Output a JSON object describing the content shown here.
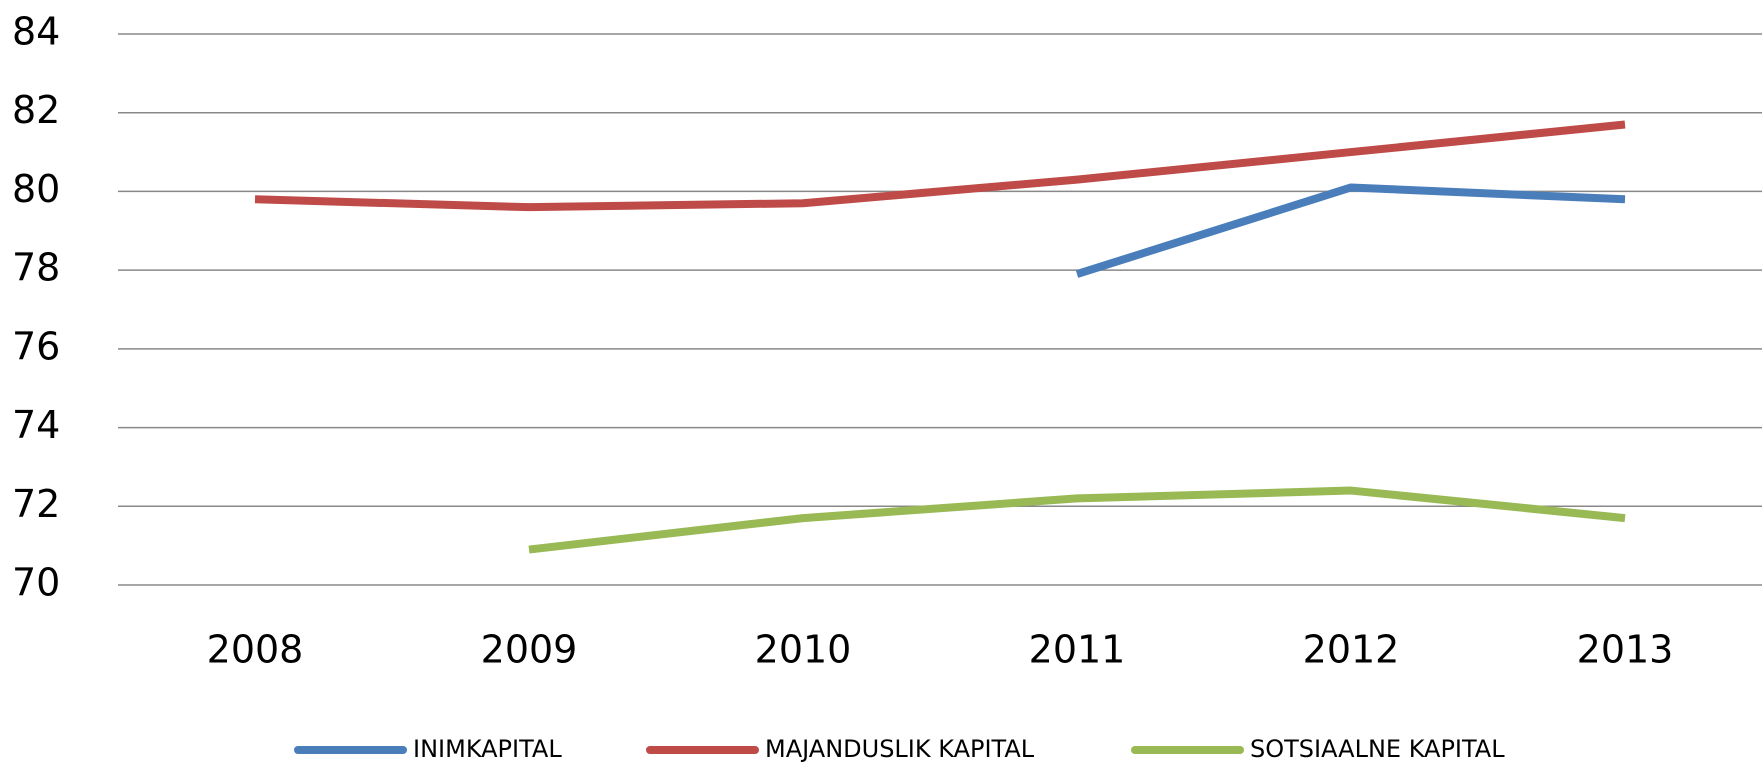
{
  "chart_data": {
    "type": "line",
    "categories": [
      "2008",
      "2009",
      "2010",
      "2011",
      "2012",
      "2013"
    ],
    "series": [
      {
        "name": "INIMKAPITAL",
        "color": "#4a7ebb",
        "values": [
          null,
          null,
          null,
          77.9,
          80.1,
          79.8
        ]
      },
      {
        "name": "MAJANDUSLIK KAPITAL",
        "color": "#be4b48",
        "values": [
          79.8,
          79.6,
          79.7,
          80.3,
          81.0,
          81.7
        ]
      },
      {
        "name": "SOTSIAALNE KAPITAL",
        "color": "#98b954",
        "values": [
          null,
          70.9,
          71.7,
          72.2,
          72.4,
          71.7
        ]
      }
    ],
    "ylim": [
      70,
      84
    ],
    "yticks": [
      70,
      72,
      74,
      76,
      78,
      80,
      82,
      84
    ],
    "grid": true,
    "legend": "bottom"
  }
}
